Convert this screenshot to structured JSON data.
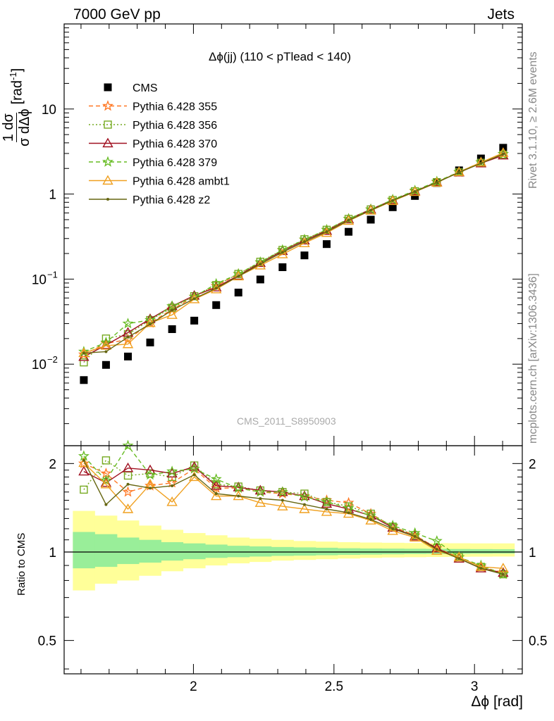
{
  "header": {
    "left_label": "7000 GeV pp",
    "right_label": "Jets"
  },
  "side_labels": {
    "rivet": "Rivet 3.1.10, ≥ 2.6M events",
    "mcplots": "mcplots.cern.ch [arXiv:1306.3436]"
  },
  "watermark": "CMS_2011_S8950903",
  "chart_data": [
    {
      "type": "scatter",
      "title": "Δϕ(jj) (110 < pTlead <  140)",
      "xlabel": "Δϕ [rad]",
      "ylabel_fraction": {
        "num": "1 dσ",
        "den": "σ dΔϕ"
      },
      "ylabel_unit": "[rad",
      "ylabel_unit_sup": "-1",
      "ylabel_unit_close": "]",
      "yscale": "log",
      "xlim": [
        1.54,
        3.17
      ],
      "ylim": [
        0.0011,
        100
      ],
      "grid": false,
      "legend_position": "top-left",
      "x": [
        1.61,
        1.689,
        1.767,
        1.846,
        1.924,
        2.003,
        2.081,
        2.16,
        2.238,
        2.317,
        2.395,
        2.474,
        2.552,
        2.631,
        2.709,
        2.788,
        2.866,
        2.945,
        3.023,
        3.102
      ],
      "series": [
        {
          "name": "CMS",
          "color": "#000000",
          "marker": "square",
          "values": [
            0.0065,
            0.0098,
            0.0123,
            0.018,
            0.0258,
            0.0325,
            0.0495,
            0.0695,
            0.099,
            0.138,
            0.19,
            0.258,
            0.36,
            0.5,
            0.7,
            0.95,
            1.35,
            1.9,
            2.62,
            3.5
          ]
        },
        {
          "name": "Pythia 6.428 355",
          "color": "#ff7722",
          "marker": "star",
          "dash": "6,4",
          "values": [
            0.013,
            0.0175,
            0.0195,
            0.0305,
            0.044,
            0.062,
            0.083,
            0.115,
            0.157,
            0.218,
            0.29,
            0.38,
            0.51,
            0.66,
            0.85,
            1.08,
            1.38,
            1.8,
            2.36,
            2.95
          ]
        },
        {
          "name": "Pythia 6.428 356",
          "color": "#77aa22",
          "marker": "open-square",
          "dash": "2,3",
          "values": [
            0.0105,
            0.02,
            0.0225,
            0.033,
            0.046,
            0.063,
            0.085,
            0.115,
            0.16,
            0.22,
            0.294,
            0.38,
            0.51,
            0.66,
            0.85,
            1.08,
            1.38,
            1.8,
            2.33,
            2.9
          ]
        },
        {
          "name": "Pythia 6.428 370",
          "color": "#a01020",
          "marker": "open-triangle",
          "dash": "",
          "values": [
            0.0122,
            0.0168,
            0.0235,
            0.034,
            0.048,
            0.064,
            0.08,
            0.11,
            0.155,
            0.214,
            0.285,
            0.37,
            0.505,
            0.66,
            0.85,
            1.08,
            1.38,
            1.8,
            2.3,
            2.85
          ]
        },
        {
          "name": "Pythia 6.428 379",
          "color": "#66bb22",
          "marker": "star",
          "dash": "6,4",
          "values": [
            0.014,
            0.018,
            0.03,
            0.033,
            0.048,
            0.062,
            0.088,
            0.115,
            0.158,
            0.22,
            0.292,
            0.38,
            0.51,
            0.66,
            0.86,
            1.1,
            1.4,
            1.82,
            2.36,
            2.95
          ]
        },
        {
          "name": "Pythia 6.428 ambt1",
          "color": "#f0a020",
          "marker": "open-triangle",
          "dash": "",
          "values": [
            0.0135,
            0.0165,
            0.0172,
            0.0305,
            0.038,
            0.058,
            0.076,
            0.108,
            0.145,
            0.196,
            0.265,
            0.35,
            0.485,
            0.64,
            0.83,
            1.06,
            1.36,
            1.82,
            2.36,
            3.05
          ]
        },
        {
          "name": "Pythia 6.428 z2",
          "color": "#666611",
          "marker": "dot",
          "dash": "",
          "values": [
            0.0135,
            0.014,
            0.0208,
            0.0295,
            0.043,
            0.059,
            0.078,
            0.108,
            0.15,
            0.207,
            0.275,
            0.36,
            0.49,
            0.645,
            0.84,
            1.07,
            1.37,
            1.8,
            2.3,
            2.95
          ]
        }
      ]
    },
    {
      "type": "line",
      "ylabel": "Ratio to CMS",
      "xlabel": "Δϕ [rad]",
      "yscale": "log",
      "ylim": [
        0.385,
        2.3
      ],
      "x_ticks": [
        "2",
        "2.5",
        "3"
      ],
      "y_ticks": [
        "0.5",
        "1",
        "2"
      ],
      "band_edges": [
        1.571,
        1.649,
        1.728,
        1.806,
        1.885,
        1.963,
        2.042,
        2.12,
        2.199,
        2.277,
        2.356,
        2.435,
        2.513,
        2.592,
        2.67,
        2.749,
        2.827,
        2.906,
        2.984,
        3.063,
        3.142
      ],
      "band_stat": {
        "low": [
          0.88,
          0.89,
          0.91,
          0.92,
          0.935,
          0.945,
          0.955,
          0.96,
          0.965,
          0.97,
          0.972,
          0.975,
          0.978,
          0.98,
          0.982,
          0.984,
          0.985,
          0.986,
          0.987,
          0.988
        ],
        "high": [
          1.17,
          1.15,
          1.12,
          1.1,
          1.08,
          1.07,
          1.06,
          1.05,
          1.045,
          1.04,
          1.037,
          1.034,
          1.03,
          1.028,
          1.027,
          1.026,
          1.025,
          1.024,
          1.023,
          1.022
        ]
      },
      "band_total": {
        "low": [
          0.74,
          0.78,
          0.8,
          0.83,
          0.86,
          0.88,
          0.9,
          0.915,
          0.925,
          0.935,
          0.94,
          0.945,
          0.95,
          0.955,
          0.958,
          0.96,
          0.962,
          0.963,
          0.964,
          0.965
        ],
        "high": [
          1.38,
          1.33,
          1.28,
          1.23,
          1.19,
          1.16,
          1.14,
          1.12,
          1.11,
          1.1,
          1.09,
          1.085,
          1.08,
          1.077,
          1.075,
          1.073,
          1.072,
          1.071,
          1.07,
          1.07
        ]
      },
      "band_colors": {
        "total": "#ffff99",
        "stat": "#99ee99"
      },
      "series": [
        {
          "name": "Pythia 6.428 355",
          "color": "#ff7722",
          "marker": "star",
          "dash": "6,4",
          "values": [
            2.0,
            1.85,
            1.6,
            1.68,
            1.72,
            1.92,
            1.65,
            1.65,
            1.6,
            1.58,
            1.55,
            1.5,
            1.47,
            1.35,
            1.22,
            1.14,
            1.03,
            0.96,
            0.89,
            0.85
          ]
        },
        {
          "name": "Pythia 6.428 356",
          "color": "#77aa22",
          "marker": "open-square",
          "dash": "2,3",
          "values": [
            1.63,
            2.05,
            1.82,
            1.85,
            1.8,
            1.97,
            1.7,
            1.67,
            1.62,
            1.6,
            1.58,
            1.48,
            1.43,
            1.35,
            1.22,
            1.14,
            1.03,
            0.96,
            0.89,
            0.84
          ]
        },
        {
          "name": "Pythia 6.428 370",
          "color": "#a01020",
          "marker": "open-triangle",
          "dash": "",
          "values": [
            1.88,
            1.72,
            1.93,
            1.9,
            1.85,
            1.95,
            1.68,
            1.66,
            1.62,
            1.6,
            1.55,
            1.46,
            1.4,
            1.33,
            1.21,
            1.13,
            1.03,
            0.95,
            0.88,
            0.85
          ]
        },
        {
          "name": "Pythia 6.428 379",
          "color": "#66bb22",
          "marker": "star",
          "dash": "6,4",
          "values": [
            2.12,
            1.75,
            2.32,
            1.83,
            1.88,
            1.92,
            1.77,
            1.65,
            1.6,
            1.6,
            1.54,
            1.48,
            1.41,
            1.33,
            1.23,
            1.16,
            1.09,
            0.96,
            0.9,
            0.84
          ]
        },
        {
          "name": "Pythia 6.428 ambt1",
          "color": "#f0a020",
          "marker": "open-triangle",
          "dash": "",
          "values": [
            2.01,
            1.7,
            1.4,
            1.7,
            1.48,
            1.8,
            1.55,
            1.55,
            1.47,
            1.43,
            1.4,
            1.37,
            1.35,
            1.28,
            1.18,
            1.12,
            1.01,
            0.96,
            0.89,
            0.88
          ]
        },
        {
          "name": "Pythia 6.428 z2",
          "color": "#666611",
          "marker": "dot",
          "dash": "",
          "values": [
            2.05,
            1.45,
            1.7,
            1.65,
            1.68,
            1.83,
            1.58,
            1.55,
            1.52,
            1.5,
            1.45,
            1.4,
            1.36,
            1.29,
            1.2,
            1.13,
            1.02,
            0.95,
            0.88,
            0.84
          ]
        }
      ]
    }
  ]
}
